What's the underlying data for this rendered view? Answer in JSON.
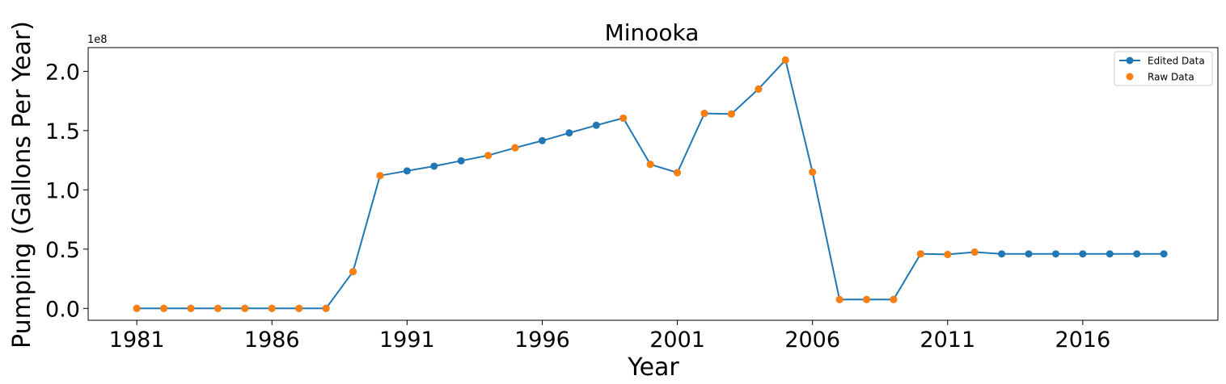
{
  "chart_data": {
    "type": "line",
    "title": "Minooka",
    "xlabel": "Year",
    "ylabel": "Pumping (Gallons Per Year)",
    "y_offset_text": "1e8",
    "xlim": [
      1979.2,
      2021.0
    ],
    "ylim": [
      -10000000.0,
      220000000.0
    ],
    "x_ticks": [
      1981,
      1986,
      1991,
      1996,
      2001,
      2006,
      2011,
      2016
    ],
    "y_ticks": [
      0.0,
      50000000.0,
      100000000.0,
      150000000.0,
      200000000.0
    ],
    "y_tick_labels": [
      "0.0",
      "0.5",
      "1.0",
      "1.5",
      "2.0"
    ],
    "legend_position": "top-right",
    "colors": {
      "edited": "#1f77b4",
      "raw": "#ff7f0e"
    },
    "series": [
      {
        "name": "Edited Data",
        "style": "line-marker",
        "x": [
          1981,
          1982,
          1983,
          1984,
          1985,
          1986,
          1987,
          1988,
          1989,
          1990,
          1991,
          1992,
          1993,
          1994,
          1995,
          1996,
          1997,
          1998,
          1999,
          2000,
          2001,
          2002,
          2003,
          2004,
          2005,
          2006,
          2007,
          2008,
          2009,
          2010,
          2011,
          2012,
          2013,
          2014,
          2015,
          2016,
          2017,
          2018,
          2019
        ],
        "values": [
          0,
          0,
          0,
          0,
          0,
          0,
          0,
          0,
          31000000,
          112000000,
          116000000,
          120000000,
          124500000,
          129000000,
          135500000,
          141500000,
          148000000,
          154500000,
          160500000,
          121500000,
          114500000,
          164500000,
          164000000,
          185000000,
          209500000,
          115000000,
          7500000,
          7500000,
          7500000,
          46000000,
          45500000,
          47500000,
          46000000,
          46000000,
          46000000,
          46000000,
          46000000,
          46000000,
          46000000
        ]
      },
      {
        "name": "Raw Data",
        "style": "marker",
        "x": [
          1981,
          1982,
          1983,
          1984,
          1985,
          1986,
          1987,
          1988,
          1989,
          1990,
          1994,
          1995,
          1999,
          2000,
          2001,
          2002,
          2003,
          2004,
          2005,
          2006,
          2007,
          2008,
          2009,
          2010,
          2011,
          2012
        ],
        "values": [
          0,
          0,
          0,
          0,
          0,
          0,
          0,
          0,
          31000000,
          112000000,
          129000000,
          135500000,
          160500000,
          121500000,
          114500000,
          164500000,
          164000000,
          185000000,
          209500000,
          115000000,
          7500000,
          7500000,
          7500000,
          46000000,
          45500000,
          47500000
        ]
      }
    ]
  }
}
